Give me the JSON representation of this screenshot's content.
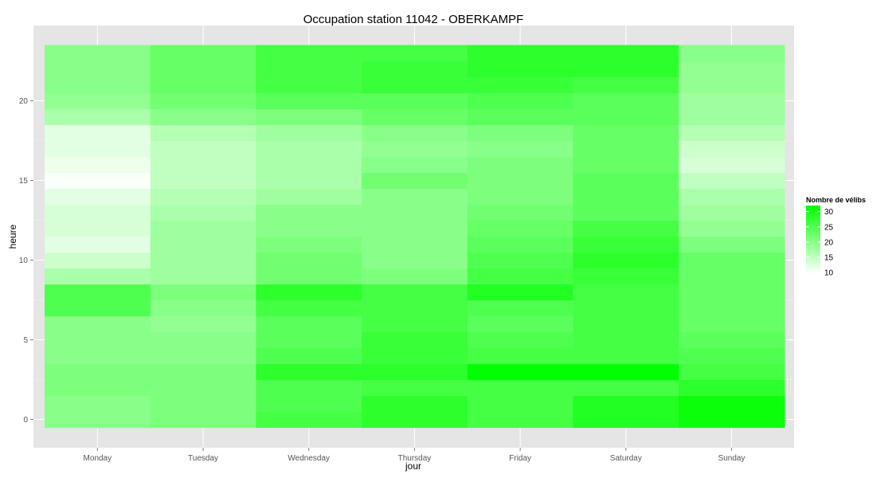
{
  "chart_data": {
    "type": "heatmap",
    "title": "Occupation station 11042 - OBERKAMPF",
    "xlabel": "jour",
    "ylabel": "heure",
    "x_categories": [
      "Monday",
      "Tuesday",
      "Wednesday",
      "Thursday",
      "Friday",
      "Saturday",
      "Sunday"
    ],
    "y_values": [
      0,
      1,
      2,
      3,
      4,
      5,
      6,
      7,
      8,
      9,
      10,
      11,
      12,
      13,
      14,
      15,
      16,
      17,
      18,
      19,
      20,
      21,
      22,
      23
    ],
    "y_ticks": [
      0,
      5,
      10,
      15,
      20
    ],
    "ylim": [
      -0.5,
      23.5
    ],
    "grid": true,
    "legend": {
      "title": "Nombre de vélibs",
      "position": "right",
      "breaks": [
        10,
        15,
        20,
        25,
        30
      ],
      "limits": [
        9.5,
        32
      ],
      "low_color": "#ffffff",
      "high_color": "#00ff00"
    },
    "values": [
      [
        20,
        21,
        26,
        28,
        26,
        29,
        31
      ],
      [
        20,
        21,
        25,
        28,
        26,
        29,
        31
      ],
      [
        21,
        21,
        25,
        26,
        26,
        26,
        28
      ],
      [
        21,
        21,
        28,
        28,
        32,
        32,
        26
      ],
      [
        20,
        20,
        25,
        27,
        26,
        26,
        25
      ],
      [
        20,
        20,
        24,
        27,
        25,
        26,
        24
      ],
      [
        20,
        19,
        24,
        26,
        24,
        26,
        23
      ],
      [
        25,
        20,
        26,
        26,
        25,
        26,
        23
      ],
      [
        25,
        21,
        28,
        26,
        29,
        26,
        23
      ],
      [
        17,
        18,
        22,
        21,
        26,
        27,
        23
      ],
      [
        14,
        18,
        22,
        20,
        25,
        28,
        23
      ],
      [
        12,
        18,
        21,
        20,
        24,
        27,
        21
      ],
      [
        13,
        18,
        20,
        20,
        23,
        26,
        19
      ],
      [
        13,
        17,
        20,
        20,
        22,
        24,
        18
      ],
      [
        12,
        16,
        18,
        20,
        21,
        24,
        17
      ],
      [
        10,
        15,
        17,
        22,
        21,
        24,
        15
      ],
      [
        11,
        15,
        17,
        20,
        21,
        23,
        13
      ],
      [
        12,
        15,
        17,
        19,
        20,
        23,
        14
      ],
      [
        12,
        16,
        18,
        20,
        21,
        23,
        16
      ],
      [
        17,
        20,
        21,
        23,
        24,
        24,
        18
      ],
      [
        19,
        22,
        24,
        24,
        25,
        24,
        18
      ],
      [
        20,
        23,
        26,
        27,
        27,
        26,
        19
      ],
      [
        20,
        23,
        26,
        27,
        28,
        28,
        19
      ],
      [
        20,
        23,
        26,
        26,
        28,
        28,
        20
      ]
    ]
  }
}
